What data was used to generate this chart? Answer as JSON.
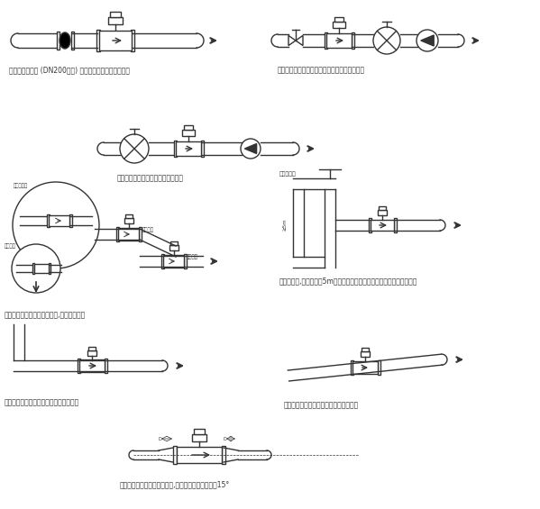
{
  "title": "",
  "background": "#ffffff",
  "line_color": "#333333",
  "text_color": "#333333",
  "captions": [
    "在大口径流量计 (DN200以上) 安装管线上要加接弹性管件",
    "长管线上控制阀和切断阀要安装在流量计的下游",
    "为防止真空，流量计应装在泵的后面",
    "为避免夹附气体引起测量误差,流量计的安装",
    "为防止真空,落差管超过5m长时要在流量计下流最高位置上装自动排气阀",
    "敞口灌入或排放流量计安装在管道低段区",
    "水平管道流量计安装在稍稍向上的管道区",
    "流量计上下游管道为异径管时,异径管中心锥角应小于15°"
  ]
}
